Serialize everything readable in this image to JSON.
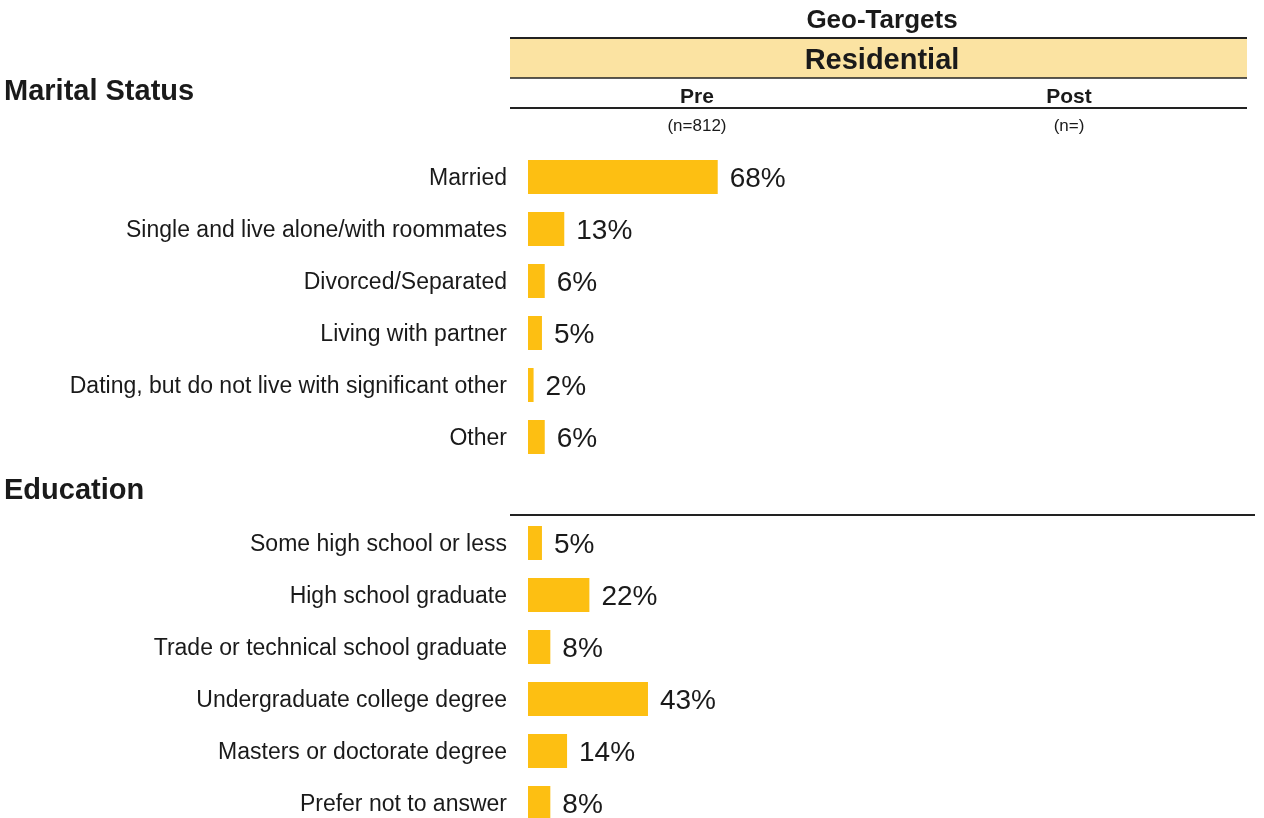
{
  "chart_data": [
    {
      "type": "bar",
      "orientation": "horizontal",
      "title": "Marital Status",
      "annotations": [
        "Geo-Targets",
        "Residential",
        "Pre",
        "(n=812)",
        "Post",
        "(n=)"
      ],
      "categories": [
        "Married",
        "Single and live alone/with roommates",
        "Divorced/Separated",
        "Living with partner",
        "Dating, but do not live with significant other",
        "Other"
      ],
      "values": [
        68,
        13,
        6,
        5,
        2,
        6
      ],
      "value_labels": [
        "68%",
        "13%",
        "6%",
        "5%",
        "2%",
        "6%"
      ],
      "color": "#fdbf12"
    },
    {
      "type": "bar",
      "orientation": "horizontal",
      "title": "Education",
      "categories": [
        "Some high school or less",
        "High school graduate",
        "Trade or technical school graduate",
        "Undergraduate college degree",
        "Masters or doctorate degree",
        "Prefer not to answer"
      ],
      "values": [
        5,
        22,
        8,
        43,
        14,
        8
      ],
      "value_labels": [
        "5%",
        "22%",
        "8%",
        "43%",
        "14%",
        "8%"
      ],
      "color": "#fdbf12"
    }
  ]
}
